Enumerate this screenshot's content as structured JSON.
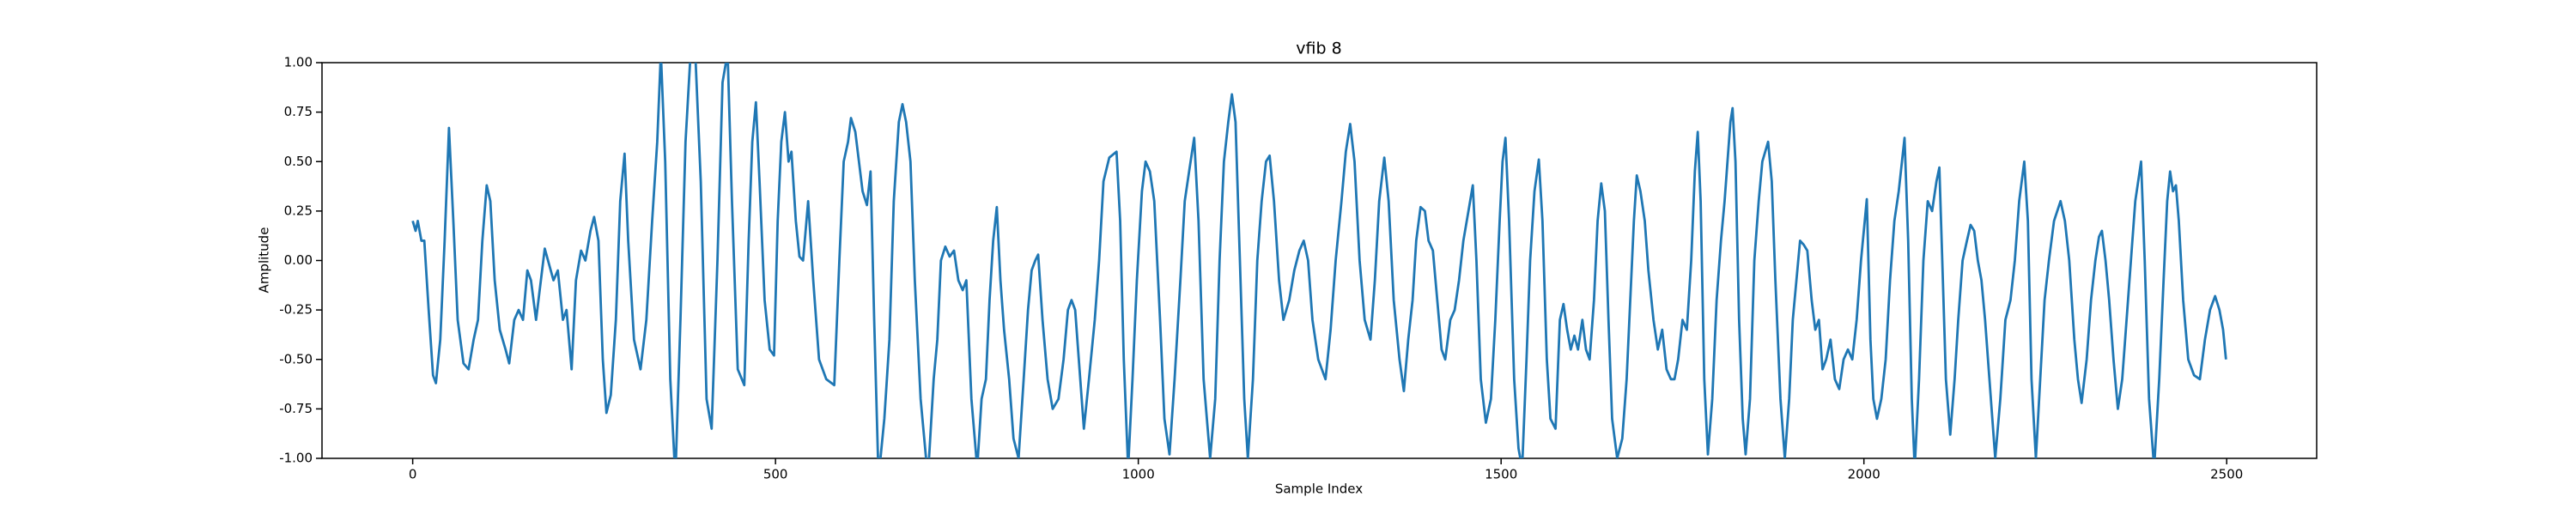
{
  "chart_data": {
    "type": "line",
    "title": "vfib 8",
    "xlabel": "Sample Index",
    "ylabel": "Amplitude",
    "xlim": [
      -125,
      2624
    ],
    "ylim": [
      -1,
      1
    ],
    "xticks": [
      0,
      500,
      1000,
      1500,
      2000,
      2500
    ],
    "yticks": [
      {
        "value": -1,
        "label": "-1.00"
      },
      -0.75,
      {
        "value": -0.5,
        "label": "-0.50"
      },
      -0.25,
      {
        "value": 0,
        "label": "0.00"
      },
      0.25,
      {
        "value": 0.5,
        "label": "0.50"
      },
      0.75,
      {
        "value": 1,
        "label": "1.00"
      }
    ],
    "grid": false,
    "x": [
      0,
      4,
      7,
      12,
      16,
      22,
      28,
      32,
      38,
      44,
      50,
      56,
      62,
      70,
      77,
      84,
      90,
      96,
      102,
      107,
      113,
      120,
      128,
      133,
      140,
      146,
      152,
      158,
      163,
      170,
      175,
      182,
      188,
      194,
      200,
      207,
      212,
      219,
      225,
      232,
      238,
      245,
      250,
      256,
      262,
      267,
      273,
      280,
      286,
      292,
      297,
      305,
      314,
      322,
      330,
      337,
      342,
      348,
      355,
      362,
      369,
      376,
      383,
      390,
      397,
      405,
      412,
      420,
      427,
      434,
      440,
      448,
      457,
      463,
      468,
      473,
      478,
      485,
      492,
      498,
      503,
      508,
      513,
      518,
      522,
      528,
      533,
      538,
      545,
      552,
      560,
      570,
      581,
      588,
      594,
      600,
      604,
      610,
      615,
      620,
      626,
      631,
      636,
      642,
      650,
      657,
      663,
      670,
      675,
      680,
      686,
      692,
      700,
      710,
      718,
      723,
      728,
      734,
      740,
      746,
      752,
      758,
      763,
      770,
      778,
      784,
      790,
      795,
      800,
      805,
      810,
      815,
      822,
      828,
      835,
      842,
      848,
      853,
      858,
      862,
      868,
      875,
      882,
      890,
      897,
      903,
      908,
      913,
      918,
      925,
      932,
      940,
      946,
      952,
      960,
      970,
      975,
      980,
      986,
      992,
      998,
      1005,
      1010,
      1016,
      1022,
      1030,
      1036,
      1043,
      1050,
      1058,
      1064,
      1070,
      1077,
      1083,
      1090,
      1099,
      1106,
      1112,
      1118,
      1124,
      1129,
      1134,
      1140,
      1146,
      1151,
      1158,
      1164,
      1170,
      1176,
      1181,
      1187,
      1194,
      1200,
      1208,
      1215,
      1222,
      1228,
      1234,
      1240,
      1248,
      1258,
      1265,
      1272,
      1280,
      1286,
      1292,
      1298,
      1305,
      1312,
      1320,
      1326,
      1332,
      1339,
      1345,
      1352,
      1360,
      1366,
      1372,
      1378,
      1383,
      1389,
      1395,
      1400,
      1406,
      1412,
      1418,
      1423,
      1430,
      1436,
      1442,
      1448,
      1455,
      1461,
      1466,
      1472,
      1479,
      1486,
      1492,
      1498,
      1502,
      1506,
      1511,
      1518,
      1524,
      1529,
      1535,
      1540,
      1546,
      1552,
      1557,
      1563,
      1568,
      1575,
      1581,
      1586,
      1591,
      1596,
      1601,
      1606,
      1612,
      1617,
      1622,
      1628,
      1633,
      1638,
      1643,
      1648,
      1653,
      1660,
      1667,
      1673,
      1678,
      1683,
      1687,
      1692,
      1698,
      1703,
      1710,
      1716,
      1722,
      1728,
      1734,
      1739,
      1744,
      1750,
      1756,
      1762,
      1767,
      1771,
      1775,
      1780,
      1785,
      1791,
      1797,
      1803,
      1808,
      1812,
      1816,
      1819,
      1823,
      1828,
      1833,
      1837,
      1843,
      1849,
      1855,
      1860,
      1868,
      1873,
      1878,
      1885,
      1891,
      1897,
      1902,
      1907,
      1912,
      1917,
      1922,
      1928,
      1933,
      1938,
      1943,
      1948,
      1954,
      1960,
      1966,
      1972,
      1978,
      1984,
      1990,
      1996,
      2004,
      2009,
      2013,
      2018,
      2024,
      2030,
      2036,
      2042,
      2048,
      2056,
      2061,
      2066,
      2070,
      2076,
      2082,
      2088,
      2094,
      2100,
      2104,
      2108,
      2113,
      2119,
      2125,
      2130,
      2136,
      2142,
      2147,
      2152,
      2157,
      2162,
      2167,
      2173,
      2181,
      2188,
      2195,
      2202,
      2208,
      2214,
      2221,
      2226,
      2231,
      2237,
      2243,
      2249,
      2255,
      2262,
      2271,
      2277,
      2283,
      2290,
      2295,
      2300,
      2307,
      2313,
      2319,
      2324,
      2328,
      2333,
      2338,
      2344,
      2350,
      2356,
      2362,
      2368,
      2374,
      2382,
      2387,
      2393,
      2400,
      2407,
      2413,
      2418,
      2422,
      2426,
      2430,
      2434,
      2440,
      2447,
      2455,
      2463,
      2470,
      2477,
      2484,
      2490,
      2495,
      2499
    ],
    "series": [
      {
        "color": "#1f77b4",
        "values": [
          0.2,
          0.15,
          0.2,
          0.1,
          0.1,
          -0.25,
          -0.58,
          -0.62,
          -0.4,
          0.1,
          0.67,
          0.2,
          -0.3,
          -0.52,
          -0.55,
          -0.4,
          -0.3,
          0.1,
          0.38,
          0.3,
          -0.1,
          -0.35,
          -0.45,
          -0.52,
          -0.3,
          -0.25,
          -0.3,
          -0.05,
          -0.1,
          -0.3,
          -0.15,
          0.06,
          -0.02,
          -0.1,
          -0.05,
          -0.3,
          -0.25,
          -0.55,
          -0.1,
          0.05,
          0.0,
          0.15,
          0.22,
          0.1,
          -0.5,
          -0.77,
          -0.68,
          -0.3,
          0.3,
          0.54,
          0.1,
          -0.4,
          -0.55,
          -0.3,
          0.2,
          0.6,
          1.05,
          0.5,
          -0.6,
          -1.1,
          -0.3,
          0.6,
          1.05,
          1.0,
          0.4,
          -0.7,
          -0.85,
          0.0,
          0.9,
          1.05,
          0.3,
          -0.55,
          -0.63,
          0.1,
          0.6,
          0.8,
          0.4,
          -0.2,
          -0.45,
          -0.48,
          0.2,
          0.6,
          0.75,
          0.5,
          0.55,
          0.2,
          0.02,
          0.0,
          0.3,
          -0.1,
          -0.5,
          -0.6,
          -0.63,
          0.0,
          0.5,
          0.6,
          0.72,
          0.65,
          0.5,
          0.35,
          0.28,
          0.45,
          -0.3,
          -1.1,
          -0.8,
          -0.4,
          0.3,
          0.7,
          0.79,
          0.7,
          0.5,
          -0.1,
          -0.7,
          -1.1,
          -0.6,
          -0.4,
          0.0,
          0.07,
          0.02,
          0.05,
          -0.1,
          -0.15,
          -0.1,
          -0.7,
          -1.05,
          -0.7,
          -0.6,
          -0.2,
          0.1,
          0.27,
          -0.1,
          -0.35,
          -0.6,
          -0.9,
          -1.0,
          -0.6,
          -0.25,
          -0.05,
          0.0,
          0.03,
          -0.3,
          -0.6,
          -0.75,
          -0.7,
          -0.5,
          -0.25,
          -0.2,
          -0.25,
          -0.5,
          -0.85,
          -0.6,
          -0.3,
          0.0,
          0.4,
          0.52,
          0.55,
          0.2,
          -0.5,
          -1.05,
          -0.6,
          -0.1,
          0.35,
          0.5,
          0.45,
          0.3,
          -0.3,
          -0.8,
          -0.98,
          -0.6,
          -0.1,
          0.3,
          0.45,
          0.62,
          0.2,
          -0.6,
          -1.0,
          -0.7,
          0.0,
          0.5,
          0.7,
          0.84,
          0.7,
          0.0,
          -0.7,
          -1.0,
          -0.6,
          0.0,
          0.3,
          0.5,
          0.53,
          0.3,
          -0.1,
          -0.3,
          -0.2,
          -0.05,
          0.05,
          0.1,
          0.0,
          -0.3,
          -0.5,
          -0.6,
          -0.35,
          0.0,
          0.3,
          0.55,
          0.69,
          0.5,
          0.0,
          -0.3,
          -0.4,
          -0.1,
          0.3,
          0.52,
          0.3,
          -0.2,
          -0.5,
          -0.66,
          -0.4,
          -0.2,
          0.1,
          0.27,
          0.25,
          0.1,
          0.05,
          -0.2,
          -0.45,
          -0.5,
          -0.3,
          -0.25,
          -0.1,
          0.1,
          0.25,
          0.38,
          0.0,
          -0.6,
          -0.82,
          -0.7,
          -0.3,
          0.2,
          0.5,
          0.62,
          0.2,
          -0.6,
          -0.95,
          -1.05,
          -0.5,
          0.0,
          0.35,
          0.51,
          0.2,
          -0.5,
          -0.8,
          -0.85,
          -0.3,
          -0.22,
          -0.35,
          -0.45,
          -0.38,
          -0.45,
          -0.3,
          -0.45,
          -0.5,
          -0.2,
          0.2,
          0.39,
          0.25,
          -0.3,
          -0.8,
          -1.0,
          -0.9,
          -0.6,
          -0.2,
          0.2,
          0.43,
          0.35,
          0.2,
          -0.05,
          -0.3,
          -0.45,
          -0.35,
          -0.55,
          -0.6,
          -0.6,
          -0.5,
          -0.3,
          -0.35,
          0.0,
          0.45,
          0.65,
          0.3,
          -0.6,
          -0.98,
          -0.7,
          -0.2,
          0.1,
          0.3,
          0.5,
          0.7,
          0.77,
          0.5,
          -0.3,
          -0.8,
          -0.98,
          -0.7,
          0.0,
          0.3,
          0.5,
          0.6,
          0.4,
          -0.1,
          -0.7,
          -1.0,
          -0.7,
          -0.3,
          -0.1,
          0.1,
          0.08,
          0.05,
          -0.2,
          -0.35,
          -0.3,
          -0.55,
          -0.5,
          -0.4,
          -0.6,
          -0.65,
          -0.5,
          -0.45,
          -0.5,
          -0.3,
          0.0,
          0.31,
          -0.4,
          -0.7,
          -0.8,
          -0.7,
          -0.5,
          -0.1,
          0.2,
          0.35,
          0.62,
          0.1,
          -0.7,
          -1.05,
          -0.6,
          0.0,
          0.3,
          0.25,
          0.4,
          0.47,
          0.0,
          -0.6,
          -0.88,
          -0.6,
          -0.3,
          0.0,
          0.1,
          0.18,
          0.15,
          0.0,
          -0.1,
          -0.3,
          -0.6,
          -1.0,
          -0.7,
          -0.3,
          -0.2,
          0.0,
          0.3,
          0.5,
          0.2,
          -0.6,
          -1.0,
          -0.6,
          -0.2,
          0.0,
          0.2,
          0.3,
          0.2,
          0.0,
          -0.4,
          -0.6,
          -0.72,
          -0.5,
          -0.2,
          0.0,
          0.12,
          0.15,
          0.0,
          -0.2,
          -0.5,
          -0.75,
          -0.6,
          -0.3,
          0.0,
          0.3,
          0.5,
          0.0,
          -0.7,
          -1.05,
          -0.6,
          -0.1,
          0.3,
          0.45,
          0.35,
          0.38,
          0.2,
          -0.2,
          -0.5,
          -0.58,
          -0.6,
          -0.4,
          -0.25,
          -0.18,
          -0.25,
          -0.35,
          -0.5
        ]
      }
    ]
  }
}
